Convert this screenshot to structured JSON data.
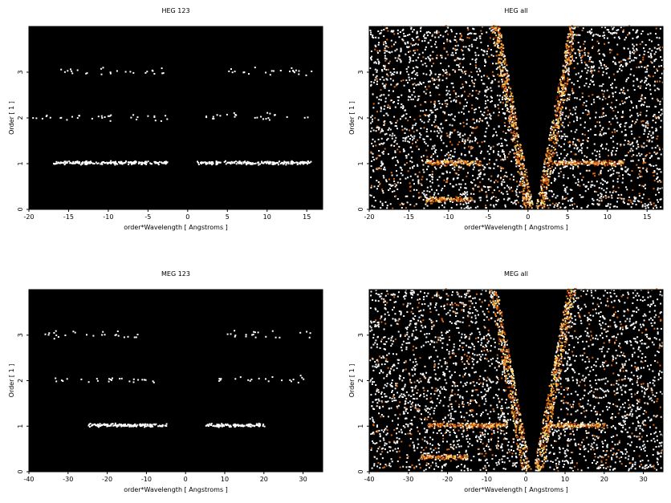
{
  "chart_data": [
    {
      "type": "heatmap",
      "title": "HEG 123",
      "xlabel": "order*Wavelength [ Angstroms ]",
      "ylabel": "Order [ 1 ]",
      "xlim": [
        -20,
        17
      ],
      "ylim": [
        0,
        4
      ],
      "xticks": [
        -20,
        -15,
        -10,
        -5,
        0,
        5,
        10,
        15
      ],
      "yticks": [
        0,
        1,
        2,
        3
      ],
      "colormap": [
        "#000000",
        "#7a1a00",
        "#e06a10",
        "#ffd060",
        "#ffffff"
      ],
      "bands": [
        {
          "order": 1,
          "x_ranges": [
            [
              -17,
              -2.5
            ],
            [
              1,
              15.5
            ]
          ],
          "intensity": "high"
        },
        {
          "order": 2,
          "x_ranges": [
            [
              -20,
              -6
            ],
            [
              -6,
              -2.5
            ],
            [
              2,
              16
            ]
          ],
          "intensity": "low"
        },
        {
          "order": 3,
          "x_ranges": [
            [
              -17,
              -3
            ],
            [
              4,
              16
            ]
          ],
          "intensity": "low"
        }
      ]
    },
    {
      "type": "heatmap",
      "title": "HEG all",
      "xlabel": "order*Wavelength [ Angstroms ]",
      "ylabel": "Order [ 1 ]",
      "xlim": [
        -20,
        17
      ],
      "ylim": [
        0,
        4
      ],
      "xticks": [
        -20,
        -15,
        -10,
        -5,
        0,
        5,
        10,
        15
      ],
      "yticks": [
        0,
        1,
        2,
        3
      ],
      "colormap": [
        "#000000",
        "#7a1a00",
        "#e06a10",
        "#ffd060",
        "#ffffff"
      ],
      "bands": [
        {
          "order": 1,
          "x_ranges": [
            [
              -13,
              -6
            ],
            [
              3,
              12
            ]
          ],
          "intensity": "high"
        },
        {
          "order": 0.2,
          "x_ranges": [
            [
              -13,
              -7
            ]
          ],
          "intensity": "high"
        },
        {
          "order": "all",
          "x_ranges": [
            [
              -20,
              17
            ]
          ],
          "intensity": "background"
        }
      ]
    },
    {
      "type": "heatmap",
      "title": "MEG 123",
      "xlabel": "order*Wavelength [ Angstroms ]",
      "ylabel": "Order [ 1 ]",
      "xlim": [
        -40,
        35
      ],
      "ylim": [
        0,
        4
      ],
      "xticks": [
        -40,
        -30,
        -20,
        -10,
        0,
        10,
        20,
        30
      ],
      "yticks": [
        0,
        1,
        2,
        3
      ],
      "colormap": [
        "#000000",
        "#7a1a00",
        "#e06a10",
        "#ffd060",
        "#ffffff"
      ],
      "bands": [
        {
          "order": 1,
          "x_ranges": [
            [
              -25,
              -5
            ],
            [
              5,
              20
            ]
          ],
          "intensity": "high"
        },
        {
          "order": 2,
          "x_ranges": [
            [
              -35,
              -8
            ],
            [
              8,
              30
            ]
          ],
          "intensity": "low"
        },
        {
          "order": 3,
          "x_ranges": [
            [
              -37,
              -10
            ],
            [
              10,
              32
            ]
          ],
          "intensity": "low"
        }
      ]
    },
    {
      "type": "heatmap",
      "title": "MEG all",
      "xlabel": "order*Wavelength [ Angstroms ]",
      "ylabel": "Order [ 1 ]",
      "xlim": [
        -40,
        35
      ],
      "ylim": [
        0,
        4
      ],
      "xticks": [
        -40,
        -30,
        -20,
        -10,
        0,
        10,
        20,
        30
      ],
      "yticks": [
        0,
        1,
        2,
        3
      ],
      "colormap": [
        "#000000",
        "#7a1a00",
        "#e06a10",
        "#ffd060",
        "#ffffff"
      ],
      "bands": [
        {
          "order": 1,
          "x_ranges": [
            [
              -25,
              -5
            ],
            [
              5,
              20
            ]
          ],
          "intensity": "high"
        },
        {
          "order": 0.3,
          "x_ranges": [
            [
              -27,
              -15
            ]
          ],
          "intensity": "high"
        },
        {
          "order": "all",
          "x_ranges": [
            [
              -40,
              35
            ]
          ],
          "intensity": "background"
        }
      ]
    }
  ]
}
